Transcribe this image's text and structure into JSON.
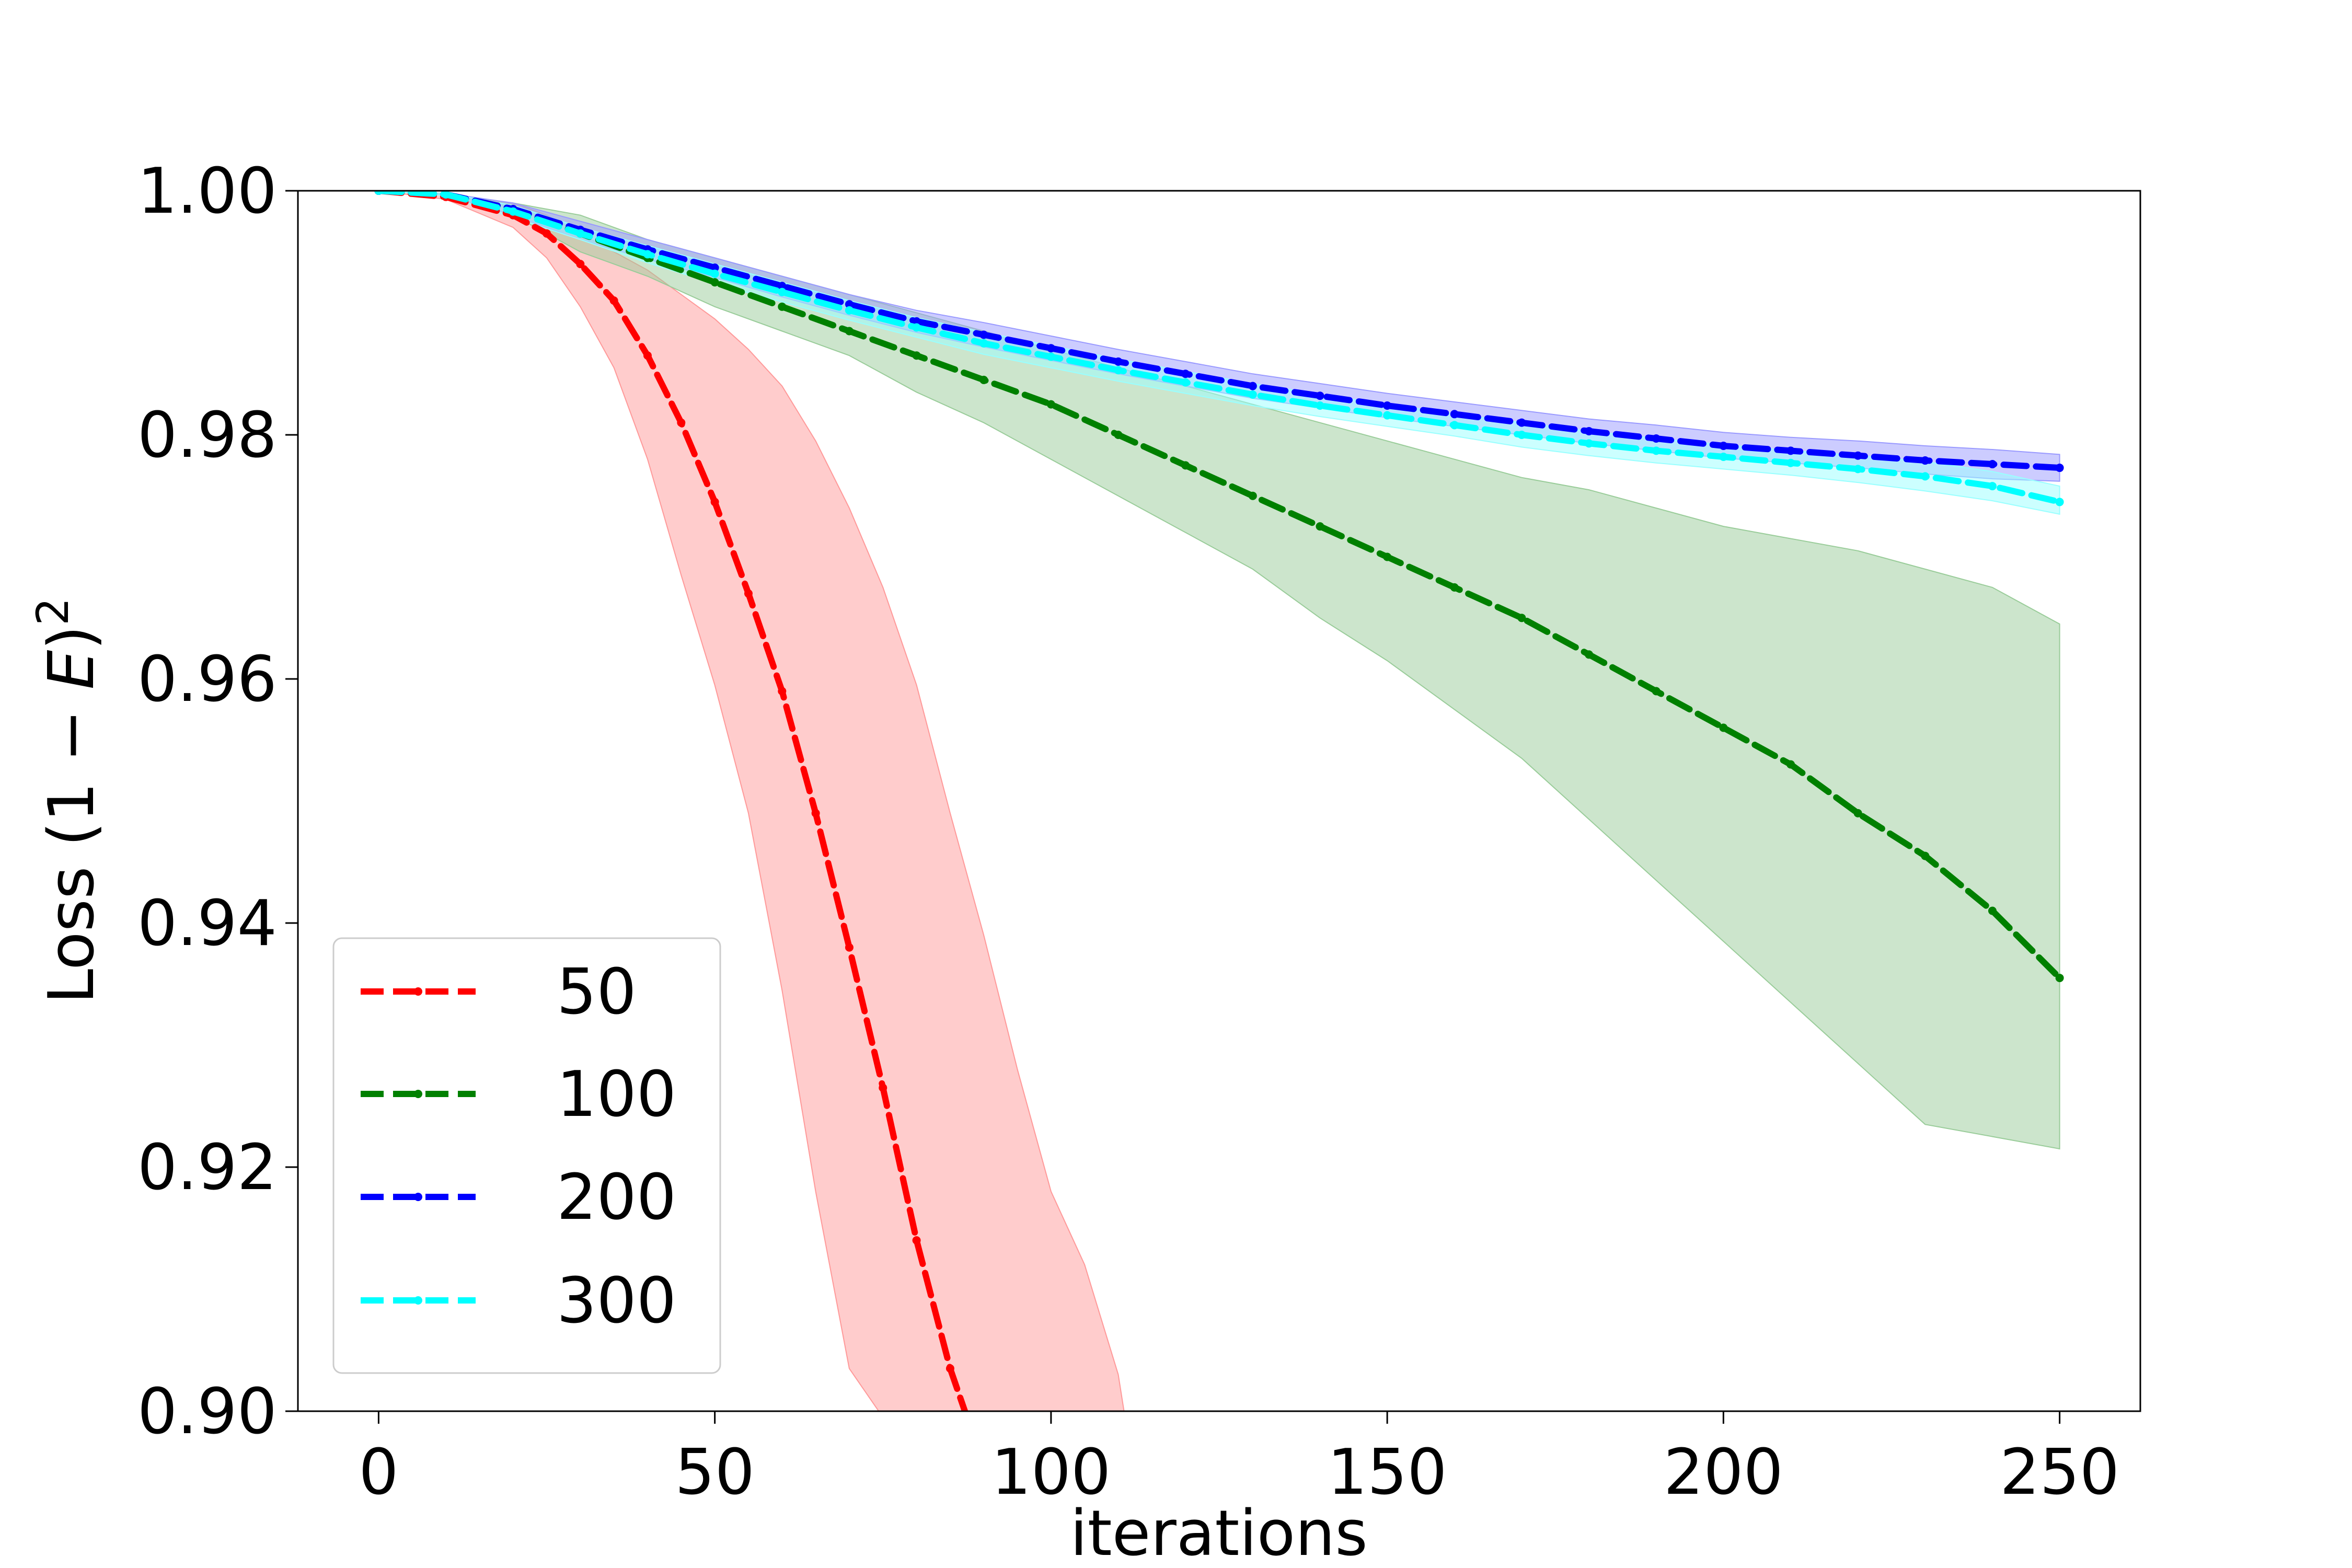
{
  "chart_data": {
    "type": "line",
    "xlabel": "iterations",
    "ylabel": {
      "prefix": "Loss (1 − ",
      "var": "E",
      "suffix": ")",
      "sup": "2"
    },
    "xlim": [
      -12,
      262
    ],
    "ylim": [
      0.9,
      1.0
    ],
    "xticks": [
      0,
      50,
      100,
      150,
      200,
      250
    ],
    "yticks": [
      0.9,
      0.92,
      0.94,
      0.96,
      0.98,
      1.0
    ],
    "ytick_labels": [
      "0.90",
      "0.92",
      "0.94",
      "0.96",
      "0.98",
      "1.00"
    ],
    "grid": false,
    "legend": {
      "position": "bottom-left",
      "entries": [
        "50",
        "100",
        "200",
        "300"
      ]
    },
    "series": [
      {
        "name": "50",
        "color": "#ff0000",
        "band_color": "#ff9999",
        "x": [
          0,
          10,
          20,
          25,
          30,
          35,
          40,
          45,
          50,
          55,
          60,
          65,
          70,
          75,
          80,
          85,
          87.5
        ],
        "y": [
          1.0,
          0.9995,
          0.998,
          0.9965,
          0.994,
          0.991,
          0.9865,
          0.981,
          0.9745,
          0.967,
          0.959,
          0.949,
          0.938,
          0.9265,
          0.914,
          0.9035,
          0.8995
        ],
        "band_x": [
          0,
          10,
          20,
          25,
          30,
          35,
          40,
          45,
          50,
          55,
          60,
          65,
          70,
          75,
          80,
          85,
          90,
          95,
          100,
          105,
          110,
          111
        ],
        "band_upper": [
          1.0,
          0.9997,
          0.999,
          0.998,
          0.9965,
          0.995,
          0.9935,
          0.9915,
          0.9895,
          0.987,
          0.984,
          0.9795,
          0.974,
          0.9675,
          0.9595,
          0.949,
          0.939,
          0.928,
          0.918,
          0.912,
          0.903,
          0.8995
        ],
        "band_lower": [
          1.0,
          0.9993,
          0.997,
          0.9945,
          0.9905,
          0.9855,
          0.978,
          0.9685,
          0.9595,
          0.949,
          0.9345,
          0.918,
          0.9035,
          0.8995,
          0.8995,
          0.8995,
          0.8995,
          0.8995,
          0.8995,
          0.8995,
          0.8995,
          0.8995
        ]
      },
      {
        "name": "100",
        "color": "#008000",
        "band_color": "#99cc99",
        "x": [
          0,
          10,
          20,
          30,
          40,
          50,
          60,
          70,
          80,
          90,
          100,
          110,
          120,
          130,
          140,
          150,
          160,
          170,
          180,
          190,
          200,
          210,
          220,
          230,
          240,
          250
        ],
        "y": [
          1.0,
          0.9997,
          0.9985,
          0.9965,
          0.9945,
          0.9925,
          0.9905,
          0.9885,
          0.9865,
          0.9845,
          0.9825,
          0.98,
          0.9775,
          0.975,
          0.9725,
          0.97,
          0.9675,
          0.965,
          0.962,
          0.959,
          0.956,
          0.953,
          0.949,
          0.9455,
          0.941,
          0.9355
        ],
        "band_x": [
          0,
          10,
          20,
          30,
          40,
          50,
          60,
          70,
          80,
          90,
          100,
          110,
          120,
          130,
          140,
          150,
          160,
          170,
          180,
          190,
          200,
          210,
          220,
          230,
          240,
          250
        ],
        "band_upper": [
          1.0,
          0.9997,
          0.999,
          0.998,
          0.996,
          0.9945,
          0.993,
          0.9915,
          0.99,
          0.9885,
          0.987,
          0.9855,
          0.984,
          0.9825,
          0.981,
          0.9795,
          0.978,
          0.9765,
          0.9755,
          0.974,
          0.9725,
          0.9715,
          0.9705,
          0.969,
          0.9675,
          0.9645
        ],
        "band_lower": [
          1.0,
          0.9997,
          0.998,
          0.995,
          0.993,
          0.9905,
          0.9885,
          0.9865,
          0.9835,
          0.981,
          0.978,
          0.975,
          0.972,
          0.969,
          0.965,
          0.9615,
          0.9575,
          0.9535,
          0.9485,
          0.9435,
          0.9385,
          0.9335,
          0.9285,
          0.9235,
          0.9225,
          0.9215
        ]
      },
      {
        "name": "200",
        "color": "#0000ff",
        "band_color": "#9999ff",
        "x": [
          0,
          10,
          20,
          30,
          40,
          50,
          60,
          70,
          80,
          90,
          100,
          110,
          120,
          130,
          140,
          150,
          160,
          170,
          180,
          190,
          200,
          210,
          220,
          230,
          240,
          250
        ],
        "y": [
          1.0,
          0.9997,
          0.9985,
          0.9968,
          0.9952,
          0.9937,
          0.9922,
          0.9907,
          0.9893,
          0.9882,
          0.9871,
          0.986,
          0.985,
          0.984,
          0.9832,
          0.9824,
          0.9817,
          0.981,
          0.9803,
          0.9797,
          0.9791,
          0.9787,
          0.9783,
          0.9779,
          0.9776,
          0.9773
        ],
        "band_x": [
          0,
          10,
          20,
          30,
          40,
          50,
          60,
          70,
          80,
          90,
          100,
          110,
          120,
          130,
          140,
          150,
          160,
          170,
          180,
          190,
          200,
          210,
          220,
          230,
          240,
          250
        ],
        "band_upper": [
          1.0,
          0.9998,
          0.999,
          0.9975,
          0.996,
          0.9945,
          0.993,
          0.9915,
          0.9902,
          0.9892,
          0.9881,
          0.987,
          0.986,
          0.985,
          0.9842,
          0.9834,
          0.9827,
          0.982,
          0.9813,
          0.9808,
          0.9802,
          0.9798,
          0.9795,
          0.9791,
          0.9788,
          0.9784
        ],
        "band_lower": [
          1.0,
          0.9996,
          0.998,
          0.996,
          0.9944,
          0.9929,
          0.9913,
          0.9898,
          0.9884,
          0.9872,
          0.9861,
          0.985,
          0.984,
          0.983,
          0.9822,
          0.9814,
          0.9807,
          0.98,
          0.9793,
          0.9787,
          0.9781,
          0.9777,
          0.9773,
          0.9768,
          0.9764,
          0.9762
        ]
      },
      {
        "name": "300",
        "color": "#00ffff",
        "band_color": "#99ffff",
        "x": [
          0,
          10,
          20,
          30,
          40,
          50,
          60,
          70,
          80,
          90,
          100,
          110,
          120,
          130,
          140,
          150,
          160,
          170,
          180,
          190,
          200,
          210,
          220,
          230,
          240,
          250
        ],
        "y": [
          1.0,
          0.9997,
          0.9983,
          0.9965,
          0.9948,
          0.9932,
          0.9917,
          0.9902,
          0.9888,
          0.9875,
          0.9864,
          0.9853,
          0.9843,
          0.9833,
          0.9824,
          0.9816,
          0.9808,
          0.98,
          0.9793,
          0.9787,
          0.9782,
          0.9777,
          0.9772,
          0.9766,
          0.9758,
          0.9745
        ],
        "band_x": [
          0,
          10,
          20,
          30,
          40,
          50,
          60,
          70,
          80,
          90,
          100,
          110,
          120,
          130,
          140,
          150,
          160,
          170,
          180,
          190,
          200,
          210,
          220,
          230,
          240,
          250
        ],
        "band_upper": [
          1.0,
          0.9998,
          0.9988,
          0.997,
          0.9955,
          0.994,
          0.9925,
          0.991,
          0.9896,
          0.9884,
          0.9873,
          0.9862,
          0.9852,
          0.9842,
          0.9833,
          0.9825,
          0.9817,
          0.981,
          0.9803,
          0.9797,
          0.9792,
          0.9787,
          0.9783,
          0.9778,
          0.977,
          0.9758
        ],
        "band_lower": [
          1.0,
          0.9996,
          0.9978,
          0.996,
          0.9941,
          0.9924,
          0.9909,
          0.9894,
          0.988,
          0.9866,
          0.9855,
          0.9844,
          0.9834,
          0.9824,
          0.9815,
          0.9807,
          0.9799,
          0.979,
          0.9783,
          0.9777,
          0.9772,
          0.9767,
          0.9761,
          0.9754,
          0.9746,
          0.9735
        ]
      }
    ]
  }
}
